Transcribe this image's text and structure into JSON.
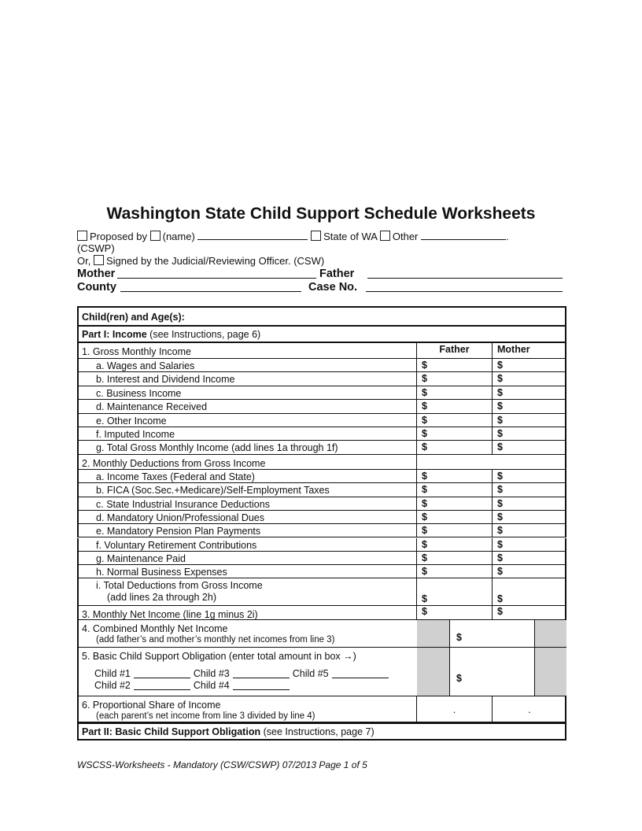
{
  "title": "Washington State Child Support Schedule Worksheets",
  "header": {
    "proposed_by": "Proposed by",
    "name": "(name)",
    "state_of_wa": "State of WA",
    "other": "Other",
    "cswp": "(CSWP)",
    "or": "Or,",
    "signed": "Signed by the Judicial/Reviewing Officer. (CSW)",
    "mother": "Mother",
    "father": "Father",
    "county": "County",
    "case_no": "Case No."
  },
  "table": {
    "children_ages": "Child(ren) and Age(s):",
    "part1_bold": "Part I:  Income",
    "part1_note": "(see Instructions, page 6)",
    "col_father": "Father",
    "col_mother": "Mother",
    "currency": "$",
    "line1": "1.  Gross Monthly Income",
    "line1_items": [
      "a.  Wages and Salaries",
      "b.  Interest and Dividend Income",
      "c.  Business Income",
      "d.  Maintenance Received",
      "e.  Other Income",
      "f.   Imputed Income",
      "g.  Total Gross Monthly Income (add lines 1a through 1f)"
    ],
    "line2": "2.  Monthly Deductions from Gross Income",
    "line2_items": [
      "a.  Income Taxes  (Federal and State)",
      "b.  FICA (Soc.Sec.+Medicare)/Self-Employment Taxes",
      "c.  State Industrial Insurance Deductions",
      "d.  Mandatory Union/Professional Dues",
      "e.  Mandatory Pension Plan Payments",
      "f.   Voluntary Retirement Contributions",
      "g.  Maintenance Paid",
      "h.  Normal Business Expenses"
    ],
    "line2i": "i.   Total Deductions from Gross Income",
    "line2i_sub": "(add lines 2a through 2h)",
    "line3": "3.  Monthly Net Income  (line 1g minus 2i)",
    "line4": "4.  Combined Monthly Net Income",
    "line4_sub": "(add father’s and mother’s monthly net incomes from line 3)",
    "line5": "5.  Basic Child Support Obligation  (enter total amount in box →)",
    "children": [
      "Child #1",
      "Child #2",
      "Child #3",
      "Child #4",
      "Child #5"
    ],
    "line6": "6.  Proportional Share of Income",
    "line6_sub": "(each parent’s net income from line 3 divided by line 4)",
    "decimal": ".",
    "part2_bold": "Part II:  Basic Child Support Obligation",
    "part2_note": "(see Instructions, page 7)"
  },
  "footer": "WSCSS-Worksheets - Mandatory (CSW/CSWP) 07/2013 Page 1 of 5"
}
